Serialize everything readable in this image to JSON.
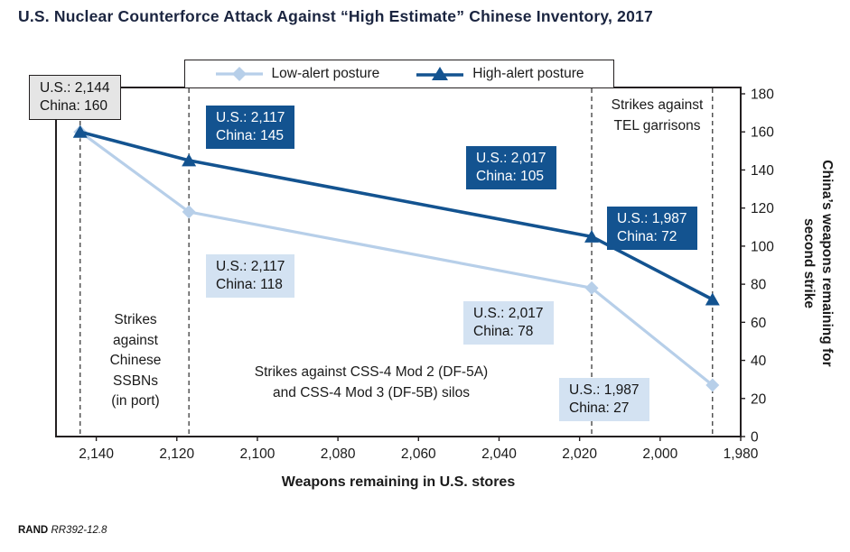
{
  "title": "U.S. Nuclear Counterforce Attack Against “High Estimate” Chinese Inventory, 2017",
  "footer": {
    "brand": "RAND",
    "doc_id": "RR392-12.8"
  },
  "chart_data": {
    "type": "line",
    "x_axis": {
      "label": "Weapons remaining in U.S. stores",
      "reversed": true,
      "xlim": [
        2150,
        1980
      ],
      "ticks": [
        2140,
        2120,
        2100,
        2080,
        2060,
        2040,
        2020,
        2000,
        1980
      ],
      "tick_labels": [
        "2,140",
        "2,120",
        "2,100",
        "2,080",
        "2,060",
        "2,040",
        "2,020",
        "2,000",
        "1,980"
      ]
    },
    "y_axis": {
      "label_lines": [
        "China’s weapons remaining for",
        "second strike"
      ],
      "ylim": [
        0,
        180
      ],
      "ticks": [
        0,
        20,
        40,
        60,
        80,
        100,
        120,
        140,
        160,
        180
      ]
    },
    "series": [
      {
        "name": "Low-alert posture",
        "marker": "diamond",
        "color": "#b7cfe9",
        "x": [
          2144,
          2117,
          2017,
          1987
        ],
        "y": [
          160,
          118,
          78,
          27
        ]
      },
      {
        "name": "High-alert posture",
        "marker": "triangle",
        "color": "#135390",
        "x": [
          2144,
          2117,
          2017,
          1987
        ],
        "y": [
          160,
          145,
          105,
          72
        ]
      }
    ],
    "dashed_lines_x": [
      2144,
      2117,
      2017,
      1987
    ],
    "point_labels": [
      {
        "style": "gray",
        "line1": "U.S.: 2,144",
        "line2": "China: 160"
      },
      {
        "style": "dark",
        "line1": "U.S.: 2,117",
        "line2": "China: 145"
      },
      {
        "style": "dark",
        "line1": "U.S.: 2,017",
        "line2": "China: 105"
      },
      {
        "style": "dark",
        "line1": "U.S.: 1,987",
        "line2": "China: 72"
      },
      {
        "style": "light",
        "line1": "U.S.: 2,117",
        "line2": "China: 118"
      },
      {
        "style": "light",
        "line1": "U.S.: 2,017",
        "line2": "China: 78"
      },
      {
        "style": "light",
        "line1": "U.S.: 1,987",
        "line2": "China: 27"
      }
    ],
    "annotations": [
      {
        "lines": [
          "Strikes",
          "against",
          "Chinese",
          "SSBNs",
          "(in port)"
        ]
      },
      {
        "lines": [
          "Strikes against CSS-4 Mod 2 (DF-5A)",
          "and CSS-4 Mod 3 (DF-5B) silos"
        ]
      },
      {
        "lines": [
          "Strikes against",
          "TEL garrisons"
        ]
      }
    ],
    "colors": {
      "high_alert": "#135390",
      "low_alert": "#b7cfe9",
      "label_light_bg": "#d3e2f2",
      "label_gray_bg": "#e5e5e5"
    }
  }
}
